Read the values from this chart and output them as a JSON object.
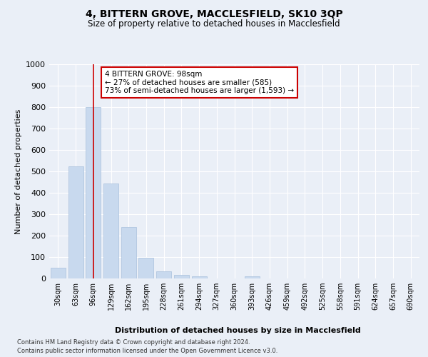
{
  "title_line1": "4, BITTERN GROVE, MACCLESFIELD, SK10 3QP",
  "title_line2": "Size of property relative to detached houses in Macclesfield",
  "xlabel": "Distribution of detached houses by size in Macclesfield",
  "ylabel": "Number of detached properties",
  "bar_color": "#c8d9ee",
  "bar_edge_color": "#a8c0dc",
  "bin_labels": [
    "30sqm",
    "63sqm",
    "96sqm",
    "129sqm",
    "162sqm",
    "195sqm",
    "228sqm",
    "261sqm",
    "294sqm",
    "327sqm",
    "360sqm",
    "393sqm",
    "426sqm",
    "459sqm",
    "492sqm",
    "525sqm",
    "558sqm",
    "591sqm",
    "624sqm",
    "657sqm",
    "690sqm"
  ],
  "bar_values": [
    50,
    525,
    800,
    445,
    240,
    98,
    33,
    18,
    10,
    0,
    0,
    10,
    0,
    0,
    0,
    0,
    0,
    0,
    0,
    0,
    0
  ],
  "property_line_x": 2,
  "annotation_text": "4 BITTERN GROVE: 98sqm\n← 27% of detached houses are smaller (585)\n73% of semi-detached houses are larger (1,593) →",
  "annotation_box_color": "#ffffff",
  "annotation_box_edge": "#cc0000",
  "line_color": "#cc0000",
  "ylim": [
    0,
    1000
  ],
  "yticks": [
    0,
    100,
    200,
    300,
    400,
    500,
    600,
    700,
    800,
    900,
    1000
  ],
  "footer_line1": "Contains HM Land Registry data © Crown copyright and database right 2024.",
  "footer_line2": "Contains public sector information licensed under the Open Government Licence v3.0.",
  "background_color": "#eaeff7",
  "plot_bg_color": "#eaeff7"
}
